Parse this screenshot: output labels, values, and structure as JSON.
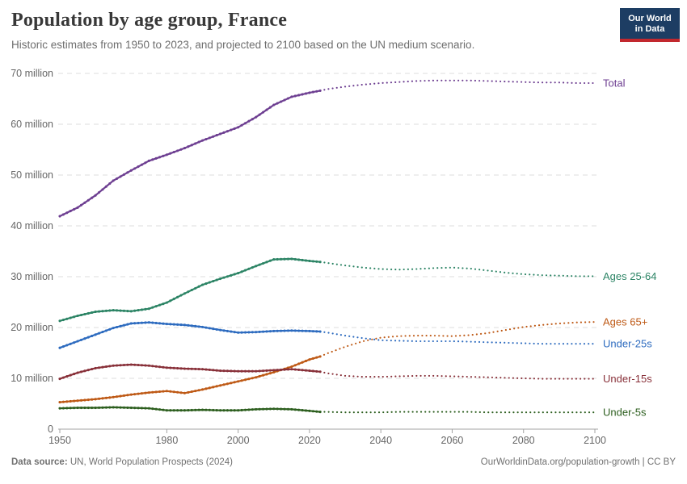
{
  "header": {
    "title": "Population by age group, France",
    "subtitle": "Historic estimates from 1950 to 2023, and projected to 2100 based on the UN medium scenario.",
    "logo": {
      "line1": "Our World",
      "line2": "in Data",
      "bg_color": "#1d3d63",
      "bar_color": "#c2282e"
    }
  },
  "chart_data": {
    "type": "line",
    "title": "Population by age group, France",
    "xlabel": "",
    "ylabel": "",
    "xlim": [
      1950,
      2100
    ],
    "ylim": [
      0,
      70000000
    ],
    "grid": true,
    "legend_position": "right-of-line-ends",
    "projection_start_year": 2023,
    "note": "solid = historic estimates, dotted = UN medium projection",
    "x_ticks": [
      1950,
      1980,
      2000,
      2020,
      2040,
      2060,
      2080,
      2100
    ],
    "y_ticks": [
      {
        "value": 0,
        "label": "0"
      },
      {
        "value": 10,
        "label": "10 million"
      },
      {
        "value": 20,
        "label": "20 million"
      },
      {
        "value": 30,
        "label": "30 million"
      },
      {
        "value": 40,
        "label": "40 million"
      },
      {
        "value": 50,
        "label": "50 million"
      },
      {
        "value": 60,
        "label": "60 million"
      },
      {
        "value": 70,
        "label": "70 million"
      }
    ],
    "unit": "million people",
    "years_historic": [
      1950,
      1955,
      1960,
      1965,
      1970,
      1975,
      1980,
      1985,
      1990,
      1995,
      2000,
      2005,
      2010,
      2015,
      2020,
      2023
    ],
    "years_projected": [
      2023,
      2025,
      2030,
      2035,
      2040,
      2045,
      2050,
      2055,
      2060,
      2065,
      2070,
      2075,
      2080,
      2085,
      2090,
      2095,
      2100
    ],
    "series": [
      {
        "name": "Total",
        "color": "#6d3e91",
        "historic": [
          41.9,
          43.6,
          46.0,
          48.9,
          50.9,
          52.8,
          54.0,
          55.3,
          56.8,
          58.1,
          59.4,
          61.4,
          63.8,
          65.4,
          66.2,
          66.6
        ],
        "projected": [
          66.6,
          66.9,
          67.4,
          67.8,
          68.1,
          68.3,
          68.5,
          68.6,
          68.6,
          68.6,
          68.5,
          68.4,
          68.3,
          68.2,
          68.2,
          68.1,
          68.1
        ]
      },
      {
        "name": "Ages 25-64",
        "color": "#2c8465",
        "historic": [
          21.3,
          22.3,
          23.1,
          23.4,
          23.2,
          23.7,
          24.9,
          26.7,
          28.4,
          29.6,
          30.7,
          32.1,
          33.4,
          33.5,
          33.1,
          32.9
        ],
        "projected": [
          32.9,
          32.7,
          32.2,
          31.8,
          31.5,
          31.4,
          31.5,
          31.7,
          31.8,
          31.6,
          31.2,
          30.8,
          30.5,
          30.3,
          30.2,
          30.1,
          30.1
        ]
      },
      {
        "name": "Ages 65+",
        "color": "#be5915",
        "historic": [
          5.3,
          5.6,
          5.9,
          6.3,
          6.8,
          7.2,
          7.5,
          7.1,
          7.8,
          8.6,
          9.4,
          10.2,
          11.2,
          12.3,
          13.7,
          14.3
        ],
        "projected": [
          14.3,
          14.9,
          16.2,
          17.3,
          18.0,
          18.3,
          18.4,
          18.4,
          18.3,
          18.5,
          18.9,
          19.5,
          20.1,
          20.5,
          20.8,
          21.0,
          21.1
        ]
      },
      {
        "name": "Under-25s",
        "color": "#2d6bbf",
        "historic": [
          16.0,
          17.3,
          18.6,
          19.9,
          20.8,
          21.0,
          20.7,
          20.5,
          20.1,
          19.5,
          19.0,
          19.1,
          19.3,
          19.4,
          19.3,
          19.2
        ],
        "projected": [
          19.2,
          19.0,
          18.4,
          17.9,
          17.5,
          17.4,
          17.3,
          17.3,
          17.3,
          17.2,
          17.1,
          17.0,
          16.9,
          16.8,
          16.8,
          16.8,
          16.8
        ]
      },
      {
        "name": "Under-15s",
        "color": "#883039",
        "historic": [
          9.9,
          11.1,
          12.0,
          12.5,
          12.7,
          12.5,
          12.1,
          11.9,
          11.8,
          11.5,
          11.4,
          11.4,
          11.6,
          11.8,
          11.5,
          11.3
        ],
        "projected": [
          11.3,
          11.0,
          10.5,
          10.3,
          10.3,
          10.4,
          10.5,
          10.5,
          10.4,
          10.3,
          10.2,
          10.1,
          10.0,
          9.9,
          9.9,
          9.9,
          9.9
        ]
      },
      {
        "name": "Under-5s",
        "color": "#2c5e1e",
        "historic": [
          4.1,
          4.2,
          4.2,
          4.3,
          4.2,
          4.1,
          3.7,
          3.7,
          3.8,
          3.7,
          3.7,
          3.9,
          4.0,
          3.9,
          3.6,
          3.4
        ],
        "projected": [
          3.4,
          3.4,
          3.3,
          3.3,
          3.3,
          3.4,
          3.4,
          3.4,
          3.4,
          3.4,
          3.3,
          3.3,
          3.3,
          3.3,
          3.3,
          3.3,
          3.3
        ]
      }
    ]
  },
  "footer": {
    "source_label": "Data source:",
    "source_text": " UN, World Population Prospects (2024)",
    "credit": "OurWorldinData.org/population-growth | CC BY"
  }
}
